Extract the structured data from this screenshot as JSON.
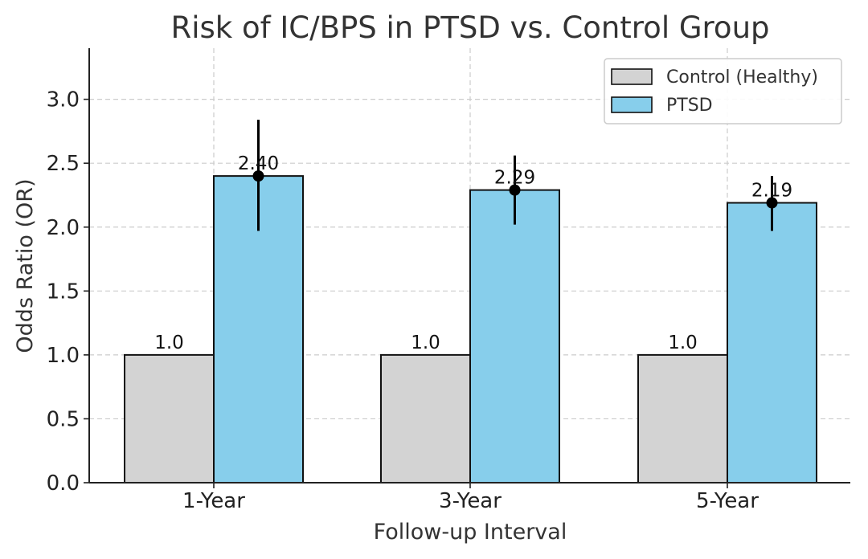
{
  "chart_data": {
    "type": "bar",
    "title": "Risk of IC/BPS in PTSD vs. Control Group",
    "xlabel": "Follow-up Interval",
    "ylabel": "Odds Ratio (OR)",
    "categories": [
      "1-Year",
      "3-Year",
      "5-Year"
    ],
    "ylim": [
      0,
      3.4
    ],
    "yticks": [
      0.0,
      0.5,
      1.0,
      1.5,
      2.0,
      2.5,
      3.0
    ],
    "ytick_labels": [
      "0.0",
      "0.5",
      "1.0",
      "1.5",
      "2.0",
      "2.5",
      "3.0"
    ],
    "grid": true,
    "legend": "top-right",
    "series": [
      {
        "name": "Control (Healthy)",
        "color": "#d3d3d3",
        "values": [
          1.0,
          1.0,
          1.0
        ],
        "labels": [
          "1.0",
          "1.0",
          "1.0"
        ]
      },
      {
        "name": "PTSD",
        "color": "#87ceeb",
        "values": [
          2.4,
          2.29,
          2.19
        ],
        "labels": [
          "2.40",
          "2.29",
          "2.19"
        ],
        "ci_low": [
          1.97,
          2.02,
          1.97
        ],
        "ci_high": [
          2.84,
          2.56,
          2.4
        ]
      }
    ]
  }
}
